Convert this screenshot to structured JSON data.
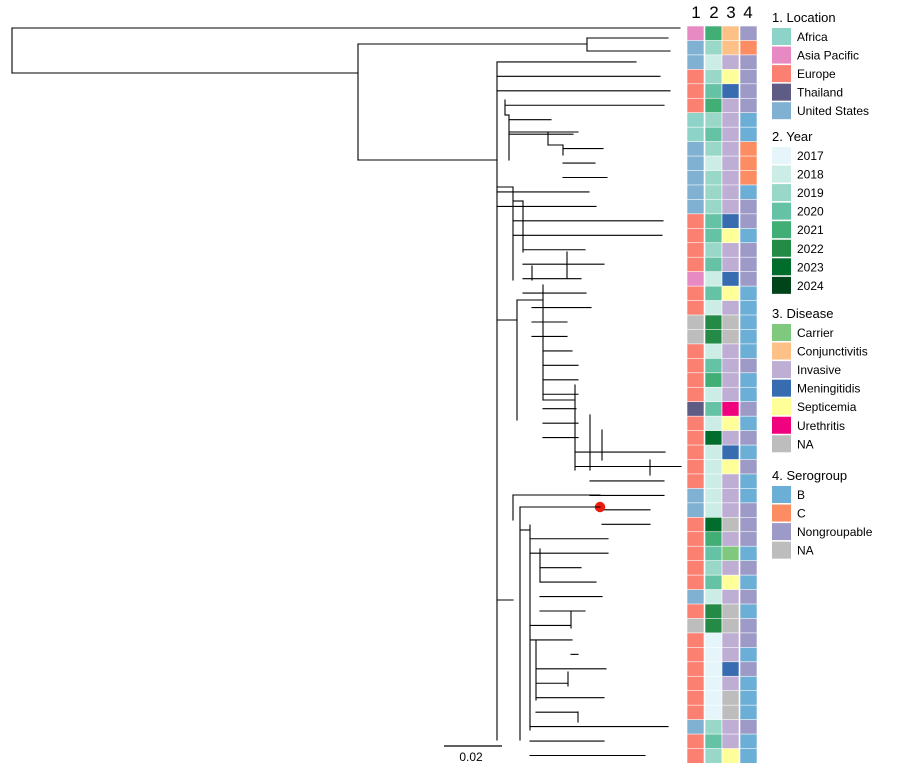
{
  "chart_data": {
    "type": "phylogenetic-tree-heatmap",
    "title": "",
    "scale_bar": {
      "value": 0.02,
      "label": "0.02"
    },
    "highlighted_tip": {
      "row": 26,
      "marker_color": "#ee1c0c"
    },
    "column_headers": [
      "1",
      "2",
      "3",
      "4"
    ],
    "legends": [
      {
        "title": "1. Location",
        "key": "loc",
        "entries": [
          {
            "label": "Africa",
            "color": "#8dd3c7"
          },
          {
            "label": "Asia Pacific",
            "color": "#e78ac3"
          },
          {
            "label": "Europe",
            "color": "#fb8072"
          },
          {
            "label": "Thailand",
            "color": "#5e5b84"
          },
          {
            "label": "United States",
            "color": "#80b1d3"
          }
        ]
      },
      {
        "title": "2. Year",
        "key": "year",
        "entries": [
          {
            "label": "2017",
            "color": "#e5f5f9"
          },
          {
            "label": "2018",
            "color": "#ccece6"
          },
          {
            "label": "2019",
            "color": "#99d8c9"
          },
          {
            "label": "2020",
            "color": "#66c2a4"
          },
          {
            "label": "2021",
            "color": "#41ae76"
          },
          {
            "label": "2022",
            "color": "#238b45"
          },
          {
            "label": "2023",
            "color": "#006d2c"
          },
          {
            "label": "2024",
            "color": "#00441b"
          }
        ]
      },
      {
        "title": "3. Disease",
        "key": "dis",
        "entries": [
          {
            "label": "Carrier",
            "color": "#7fc97f"
          },
          {
            "label": "Conjunctivitis",
            "color": "#fdc086"
          },
          {
            "label": "Invasive",
            "color": "#beaed4"
          },
          {
            "label": "Meningitidis",
            "color": "#386cb0"
          },
          {
            "label": "Septicemia",
            "color": "#ffff99"
          },
          {
            "label": "Urethritis",
            "color": "#f0027f"
          },
          {
            "label": "NA",
            "color": "#bdbdbd"
          }
        ]
      },
      {
        "title": "4. Serogroup",
        "key": "sero",
        "entries": [
          {
            "label": "B",
            "color": "#6baed6"
          },
          {
            "label": "C",
            "color": "#fc8d62"
          },
          {
            "label": "Nongroupable",
            "color": "#9e9ac8"
          },
          {
            "label": "NA",
            "color": "#bdbdbd"
          }
        ]
      }
    ],
    "rows": [
      [
        "Asia Pacific",
        "2021",
        "Conjunctivitis",
        "Nongroupable"
      ],
      [
        "United States",
        "2019",
        "Conjunctivitis",
        "C"
      ],
      [
        "United States",
        "2018",
        "Invasive",
        "Nongroupable"
      ],
      [
        "Europe",
        "2019",
        "Septicemia",
        "Nongroupable"
      ],
      [
        "Europe",
        "2020",
        "Meningitidis",
        "Nongroupable"
      ],
      [
        "Europe",
        "2021",
        "Invasive",
        "Nongroupable"
      ],
      [
        "Africa",
        "2019",
        "Invasive",
        "B"
      ],
      [
        "Africa",
        "2020",
        "Invasive",
        "B"
      ],
      [
        "United States",
        "2019",
        "Invasive",
        "C"
      ],
      [
        "United States",
        "2018",
        "Invasive",
        "C"
      ],
      [
        "United States",
        "2019",
        "Invasive",
        "C"
      ],
      [
        "United States",
        "2019",
        "Invasive",
        "B"
      ],
      [
        "United States",
        "2019",
        "Invasive",
        "Nongroupable"
      ],
      [
        "Europe",
        "2020",
        "Meningitidis",
        "Nongroupable"
      ],
      [
        "Europe",
        "2020",
        "Septicemia",
        "B"
      ],
      [
        "Europe",
        "2019",
        "Invasive",
        "Nongroupable"
      ],
      [
        "Europe",
        "2020",
        "Invasive",
        "Nongroupable"
      ],
      [
        "Asia Pacific",
        "2018",
        "Meningitidis",
        "Nongroupable"
      ],
      [
        "Europe",
        "2020",
        "Septicemia",
        "B"
      ],
      [
        "Europe",
        "2018",
        "Invasive",
        "B"
      ],
      [
        "NA",
        "2022",
        "NA",
        "B"
      ],
      [
        "NA",
        "2022",
        "NA",
        "B"
      ],
      [
        "Europe",
        "2018",
        "Invasive",
        "B"
      ],
      [
        "Europe",
        "2020",
        "Invasive",
        "Nongroupable"
      ],
      [
        "Europe",
        "2021",
        "Invasive",
        "B"
      ],
      [
        "Europe",
        "2018",
        "Invasive",
        "B"
      ],
      [
        "Thailand",
        "2020",
        "Urethritis",
        "Nongroupable"
      ],
      [
        "Europe",
        "2018",
        "Septicemia",
        "B"
      ],
      [
        "Europe",
        "2023",
        "Invasive",
        "Nongroupable"
      ],
      [
        "Europe",
        "2018",
        "Meningitidis",
        "B"
      ],
      [
        "Europe",
        "2018",
        "Septicemia",
        "Nongroupable"
      ],
      [
        "Europe",
        "2018",
        "Invasive",
        "B"
      ],
      [
        "United States",
        "2018",
        "Invasive",
        "B"
      ],
      [
        "United States",
        "2018",
        "Invasive",
        "Nongroupable"
      ],
      [
        "Europe",
        "2023",
        "NA",
        "Nongroupable"
      ],
      [
        "Europe",
        "2021",
        "Invasive",
        "Nongroupable"
      ],
      [
        "Europe",
        "2020",
        "Carrier",
        "B"
      ],
      [
        "Europe",
        "2019",
        "Invasive",
        "Nongroupable"
      ],
      [
        "Europe",
        "2020",
        "Septicemia",
        "B"
      ],
      [
        "United States",
        "2018",
        "Invasive",
        "Nongroupable"
      ],
      [
        "Europe",
        "2022",
        "NA",
        "B"
      ],
      [
        "NA",
        "2022",
        "NA",
        "Nongroupable"
      ],
      [
        "Europe",
        "2017",
        "Invasive",
        "Nongroupable"
      ],
      [
        "Europe",
        "2017",
        "Invasive",
        "B"
      ],
      [
        "Europe",
        "2017",
        "Meningitidis",
        "Nongroupable"
      ],
      [
        "Europe",
        "2017",
        "Invasive",
        "B"
      ],
      [
        "Europe",
        "2017",
        "NA",
        "B"
      ],
      [
        "Europe",
        "2017",
        "NA",
        "B"
      ],
      [
        "United States",
        "2019",
        "Invasive",
        "Nongroupable"
      ],
      [
        "Europe",
        "2020",
        "Invasive",
        "B"
      ],
      [
        "Europe",
        "2019",
        "Septicemia",
        "B"
      ]
    ]
  }
}
